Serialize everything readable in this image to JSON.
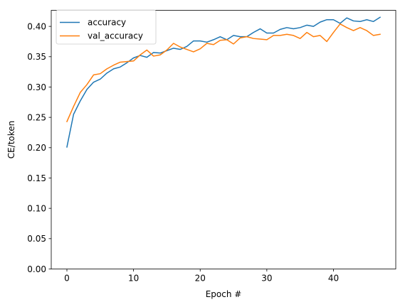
{
  "chart_data": {
    "type": "line",
    "title": "",
    "xlabel": "Epoch #",
    "ylabel": "CE/token",
    "xlim": [
      -2.35,
      49.35
    ],
    "ylim": [
      0,
      0.4265
    ],
    "xticks": [
      0,
      10,
      20,
      30,
      40
    ],
    "yticks": [
      0.0,
      0.05,
      0.1,
      0.15,
      0.2,
      0.25,
      0.3,
      0.35,
      0.4
    ],
    "ytick_labels": [
      "0.00",
      "0.05",
      "0.10",
      "0.15",
      "0.20",
      "0.25",
      "0.30",
      "0.35",
      "0.40"
    ],
    "grid": false,
    "legend": "top-left",
    "x": [
      0,
      1,
      2,
      3,
      4,
      5,
      6,
      7,
      8,
      9,
      10,
      11,
      12,
      13,
      14,
      15,
      16,
      17,
      18,
      19,
      20,
      21,
      22,
      23,
      24,
      25,
      26,
      27,
      28,
      29,
      30,
      31,
      32,
      33,
      34,
      35,
      36,
      37,
      38,
      39,
      40,
      41,
      42,
      43,
      44,
      45,
      46,
      47
    ],
    "series": [
      {
        "name": "accuracy",
        "color": "#1f77b4",
        "values": [
          0.201,
          0.255,
          0.277,
          0.296,
          0.308,
          0.313,
          0.323,
          0.33,
          0.333,
          0.34,
          0.348,
          0.352,
          0.349,
          0.357,
          0.356,
          0.36,
          0.364,
          0.362,
          0.367,
          0.376,
          0.376,
          0.374,
          0.378,
          0.383,
          0.378,
          0.385,
          0.383,
          0.383,
          0.39,
          0.396,
          0.389,
          0.389,
          0.395,
          0.398,
          0.396,
          0.398,
          0.402,
          0.4,
          0.407,
          0.411,
          0.411,
          0.405,
          0.414,
          0.409,
          0.408,
          0.411,
          0.408,
          0.415
        ]
      },
      {
        "name": "val_accuracy",
        "color": "#ff7f0e",
        "values": [
          0.243,
          0.268,
          0.291,
          0.304,
          0.32,
          0.322,
          0.33,
          0.336,
          0.341,
          0.342,
          0.343,
          0.353,
          0.361,
          0.351,
          0.353,
          0.361,
          0.372,
          0.366,
          0.362,
          0.358,
          0.363,
          0.372,
          0.37,
          0.377,
          0.378,
          0.371,
          0.381,
          0.383,
          0.38,
          0.379,
          0.378,
          0.385,
          0.385,
          0.387,
          0.385,
          0.38,
          0.39,
          0.383,
          0.385,
          0.375,
          0.39,
          0.404,
          0.398,
          0.393,
          0.398,
          0.393,
          0.385,
          0.387
        ]
      }
    ]
  }
}
